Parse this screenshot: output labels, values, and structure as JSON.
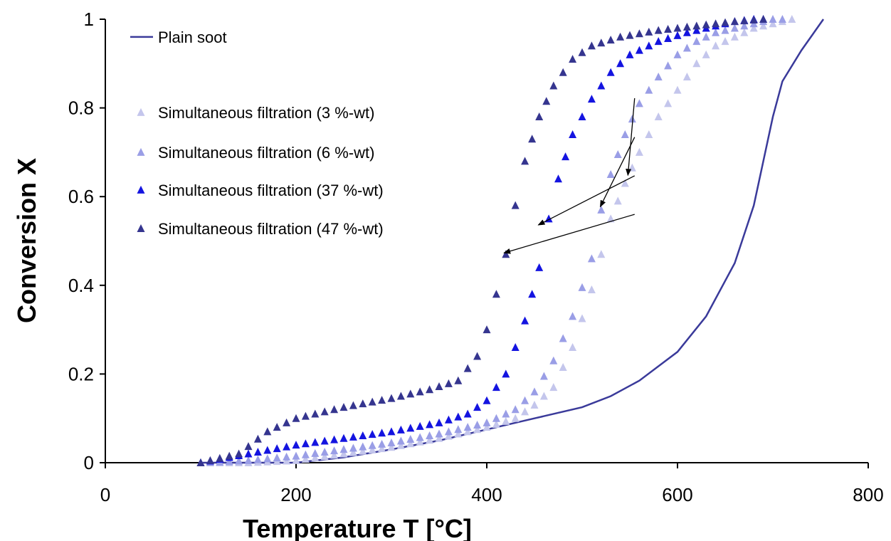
{
  "chart_data": {
    "type": "scatter",
    "title": "",
    "xlabel": "Temperature T [°C]",
    "ylabel": "Conversion X",
    "xlim": [
      0,
      800
    ],
    "ylim": [
      0,
      1
    ],
    "xticks": [
      0,
      200,
      400,
      600,
      800
    ],
    "yticks": [
      0,
      0.2,
      0.4,
      0.6,
      0.8,
      1
    ],
    "xtick_labels": [
      "0",
      "200",
      "400",
      "600",
      "800"
    ],
    "ytick_labels": [
      "0",
      "0.2",
      "0.4",
      "0.6",
      "0.8",
      "1"
    ],
    "grid": false,
    "legend_position": "left",
    "series": [
      {
        "name": "Plain soot",
        "kind": "line",
        "color": "#3a3a9a",
        "x": [
          100,
          150,
          200,
          250,
          300,
          350,
          400,
          450,
          500,
          530,
          560,
          600,
          630,
          660,
          680,
          690,
          700,
          710,
          730,
          753
        ],
        "y": [
          0,
          0,
          0,
          0.012,
          0.03,
          0.05,
          0.075,
          0.1,
          0.125,
          0.15,
          0.185,
          0.25,
          0.33,
          0.45,
          0.58,
          0.68,
          0.78,
          0.86,
          0.93,
          1.0
        ]
      },
      {
        "name": "Simultaneous filtration (3 %-wt)",
        "kind": "marker",
        "color": "#c4c6ec",
        "x": [
          100,
          150,
          200,
          250,
          300,
          350,
          400,
          430,
          450,
          470,
          490,
          510,
          530,
          545,
          560,
          580,
          600,
          620,
          640,
          660,
          680,
          700,
          720
        ],
        "y": [
          0,
          0,
          0.005,
          0.02,
          0.035,
          0.055,
          0.08,
          0.1,
          0.13,
          0.17,
          0.26,
          0.39,
          0.55,
          0.63,
          0.7,
          0.78,
          0.84,
          0.9,
          0.94,
          0.96,
          0.98,
          0.99,
          1.0
        ]
      },
      {
        "name": "Simultaneous filtration (6 %-wt)",
        "kind": "marker",
        "color": "#9a9ee6",
        "x": [
          100,
          150,
          200,
          250,
          300,
          350,
          400,
          430,
          450,
          470,
          490,
          510,
          520,
          530,
          545,
          560,
          580,
          600,
          620,
          640,
          660,
          680,
          700,
          710
        ],
        "y": [
          0,
          0.005,
          0.015,
          0.03,
          0.045,
          0.065,
          0.09,
          0.12,
          0.16,
          0.23,
          0.33,
          0.46,
          0.57,
          0.65,
          0.74,
          0.81,
          0.87,
          0.92,
          0.95,
          0.97,
          0.98,
          0.99,
          1.0,
          1.0
        ]
      },
      {
        "name": "Simultaneous filtration (37 %-wt)",
        "kind": "marker",
        "color": "#1414e0",
        "x": [
          100,
          150,
          200,
          250,
          300,
          350,
          380,
          400,
          420,
          440,
          455,
          465,
          475,
          490,
          510,
          530,
          550,
          580,
          610,
          640,
          660,
          680,
          690
        ],
        "y": [
          0,
          0.02,
          0.04,
          0.055,
          0.07,
          0.09,
          0.11,
          0.14,
          0.2,
          0.32,
          0.44,
          0.55,
          0.64,
          0.74,
          0.82,
          0.88,
          0.92,
          0.95,
          0.97,
          0.985,
          0.995,
          1.0,
          1.0
        ]
      },
      {
        "name": "Simultaneous filtration (47 %-wt)",
        "kind": "marker",
        "color": "#35358f",
        "x": [
          100,
          140,
          170,
          200,
          250,
          300,
          340,
          370,
          390,
          400,
          410,
          420,
          430,
          440,
          455,
          470,
          490,
          510,
          540,
          580,
          620,
          660,
          690
        ],
        "y": [
          0,
          0.02,
          0.07,
          0.1,
          0.125,
          0.145,
          0.165,
          0.185,
          0.24,
          0.3,
          0.38,
          0.47,
          0.58,
          0.68,
          0.78,
          0.85,
          0.91,
          0.94,
          0.96,
          0.975,
          0.985,
          0.995,
          1.0
        ]
      }
    ],
    "annotations": [
      {
        "series": "Simultaneous filtration (3 %-wt)",
        "from": [
          361,
          0.822
        ],
        "to": [
          548,
          0.648
        ]
      },
      {
        "series": "Simultaneous filtration (6 %-wt)",
        "from": [
          361,
          0.734
        ],
        "to": [
          519,
          0.577
        ]
      },
      {
        "series": "Simultaneous filtration (37 %-wt)",
        "from": [
          361,
          0.647
        ],
        "to": [
          454,
          0.536
        ]
      },
      {
        "series": "Simultaneous filtration (47 %-wt)",
        "from": [
          361,
          0.56
        ],
        "to": [
          418,
          0.473
        ]
      }
    ]
  }
}
